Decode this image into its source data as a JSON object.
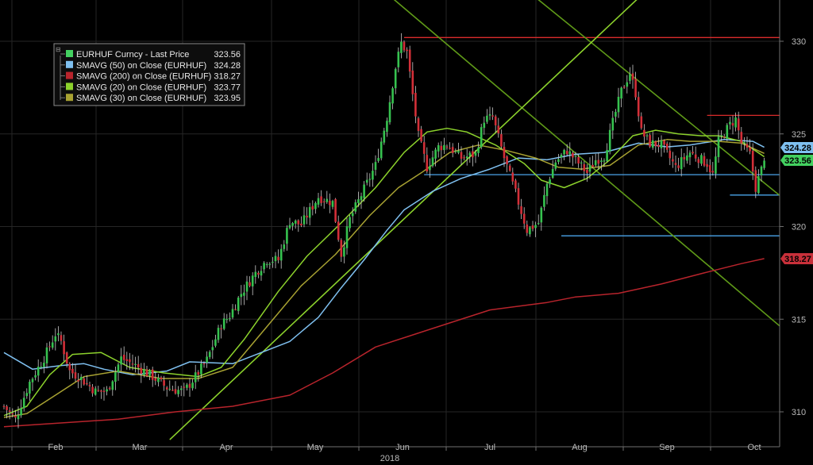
{
  "chart_data": {
    "type": "candlestick",
    "instrument": "EURHUF Curncy",
    "ylim": [
      308.5,
      332.3
    ],
    "yticks": [
      "310",
      "315",
      "320",
      "325",
      "330"
    ],
    "xticks": [
      "Feb",
      "Mar",
      "Apr",
      "May",
      "Jun",
      "Jul",
      "Aug",
      "Sep",
      "Oct"
    ],
    "year_label": "2018",
    "grid": true,
    "legend_position": "top-left",
    "legend": [
      {
        "name": "EURHUF Curncy - Last Price",
        "value": "323.56",
        "color": "#43d160"
      },
      {
        "name": "SMAVG (50)  on Close (EURHUF)",
        "value": "324.28",
        "color": "#7fc0f0"
      },
      {
        "name": "SMAVG (200)  on Close (EURHUF)",
        "value": "318.27",
        "color": "#b8242c"
      },
      {
        "name": "SMAVG (20)  on Close (EURHUF)",
        "value": "323.77",
        "color": "#8cd22c"
      },
      {
        "name": "SMAVG (30)  on Close (EURHUF)",
        "value": "323.95",
        "color": "#a8a232"
      }
    ],
    "value_tags": [
      {
        "value": "324.28",
        "color": "#7fc0f0"
      },
      {
        "value": "323.56",
        "color": "#43d160"
      },
      {
        "value": "318.27",
        "color": "#c8303a"
      }
    ],
    "colors": {
      "up": "#36c24f",
      "down": "#d32f38",
      "sma50": "#7fc0f0",
      "sma200": "#b8242c",
      "sma20": "#8cd22c",
      "sma30": "#a8a232",
      "trend": "#5f9a18",
      "trend_light": "#8cd22c",
      "resistance": "#d92b2b",
      "support": "#4aa3e8",
      "grid": "#262626",
      "axis": "#b9b9b9"
    },
    "close_path": [
      [
        0,
        310.3
      ],
      [
        4,
        309.6
      ],
      [
        9,
        311.6
      ],
      [
        14,
        312.9
      ],
      [
        18,
        314.2
      ],
      [
        20,
        313.8
      ],
      [
        23,
        312.2
      ],
      [
        27,
        311.8
      ],
      [
        32,
        311.1
      ],
      [
        36,
        311.1
      ],
      [
        41,
        312.9
      ],
      [
        46,
        312.5
      ],
      [
        52,
        311.9
      ],
      [
        57,
        311.3
      ],
      [
        63,
        311.1
      ],
      [
        67,
        311.9
      ],
      [
        71,
        312.8
      ],
      [
        76,
        314.7
      ],
      [
        79,
        315.2
      ],
      [
        83,
        316.4
      ],
      [
        88,
        317.5
      ],
      [
        92,
        318.2
      ],
      [
        96,
        318.2
      ],
      [
        100,
        320.3
      ],
      [
        104,
        320.1
      ],
      [
        110,
        321.6
      ],
      [
        115,
        321.3
      ],
      [
        118,
        318.5
      ],
      [
        121,
        320.4
      ],
      [
        125,
        321.7
      ],
      [
        130,
        323.3
      ],
      [
        134,
        325.9
      ],
      [
        137,
        328.6
      ],
      [
        139,
        329.9
      ],
      [
        141,
        329.4
      ],
      [
        143,
        327.1
      ],
      [
        145,
        324.9
      ],
      [
        148,
        323.2
      ],
      [
        152,
        324.3
      ],
      [
        155,
        324.4
      ],
      [
        160,
        323.7
      ],
      [
        165,
        323.9
      ],
      [
        168,
        325.8
      ],
      [
        171,
        325.9
      ],
      [
        175,
        323.7
      ],
      [
        179,
        321.8
      ],
      [
        183,
        319.8
      ],
      [
        187,
        320.2
      ],
      [
        190,
        322.3
      ],
      [
        193,
        323.5
      ],
      [
        197,
        324.1
      ],
      [
        200,
        323.6
      ],
      [
        204,
        322.9
      ],
      [
        207,
        323.6
      ],
      [
        210,
        323.8
      ],
      [
        213,
        325.6
      ],
      [
        216,
        327.3
      ],
      [
        219,
        328.3
      ],
      [
        221,
        327.2
      ],
      [
        223,
        325.1
      ],
      [
        226,
        324.5
      ],
      [
        230,
        324.4
      ],
      [
        235,
        323.2
      ],
      [
        240,
        324.0
      ],
      [
        246,
        323.4
      ],
      [
        248,
        322.8
      ],
      [
        250,
        324.6
      ],
      [
        254,
        325.5
      ],
      [
        256,
        325.8
      ],
      [
        258,
        324.5
      ],
      [
        261,
        323.9
      ],
      [
        263,
        322.1
      ],
      [
        266,
        323.56
      ]
    ],
    "series": [
      {
        "name": "SMAVG (50)  on Close (EURHUF)",
        "last": 324.28,
        "values": [
          [
            0,
            313.2
          ],
          [
            10,
            312.3
          ],
          [
            20,
            312.5
          ],
          [
            28,
            312.6
          ],
          [
            35,
            312.3
          ],
          [
            45,
            312.0
          ],
          [
            57,
            312.2
          ],
          [
            65,
            312.7
          ],
          [
            80,
            312.6
          ],
          [
            100,
            313.8
          ],
          [
            110,
            315.1
          ],
          [
            118,
            316.7
          ],
          [
            126,
            318.2
          ],
          [
            134,
            319.8
          ],
          [
            140,
            320.9
          ],
          [
            150,
            321.9
          ],
          [
            160,
            322.6
          ],
          [
            170,
            323.1
          ],
          [
            180,
            323.7
          ],
          [
            190,
            323.6
          ],
          [
            200,
            323.9
          ],
          [
            210,
            324.0
          ],
          [
            222,
            324.5
          ],
          [
            232,
            324.3
          ],
          [
            240,
            324.4
          ],
          [
            252,
            324.7
          ],
          [
            262,
            324.6
          ],
          [
            266,
            324.28
          ]
        ]
      },
      {
        "name": "SMAVG (200)  on Close (EURHUF)",
        "last": 318.27,
        "values": [
          [
            0,
            309.2
          ],
          [
            20,
            309.4
          ],
          [
            40,
            309.6
          ],
          [
            60,
            310.0
          ],
          [
            80,
            310.3
          ],
          [
            100,
            310.9
          ],
          [
            115,
            312.1
          ],
          [
            130,
            313.5
          ],
          [
            150,
            314.5
          ],
          [
            170,
            315.5
          ],
          [
            190,
            315.9
          ],
          [
            200,
            316.2
          ],
          [
            215,
            316.4
          ],
          [
            230,
            316.9
          ],
          [
            245,
            317.5
          ],
          [
            258,
            318.0
          ],
          [
            266,
            318.27
          ]
        ]
      },
      {
        "name": "SMAVG (20)  on Close (EURHUF)",
        "last": 323.77,
        "values": [
          [
            0,
            309.8
          ],
          [
            8,
            310.3
          ],
          [
            16,
            312.0
          ],
          [
            24,
            313.1
          ],
          [
            34,
            313.2
          ],
          [
            44,
            312.4
          ],
          [
            56,
            312.1
          ],
          [
            68,
            311.9
          ],
          [
            76,
            312.4
          ],
          [
            84,
            313.9
          ],
          [
            96,
            316.5
          ],
          [
            106,
            318.4
          ],
          [
            118,
            320.2
          ],
          [
            130,
            322.1
          ],
          [
            140,
            324.0
          ],
          [
            148,
            325.1
          ],
          [
            155,
            325.3
          ],
          [
            162,
            325.1
          ],
          [
            172,
            324.4
          ],
          [
            182,
            323.4
          ],
          [
            188,
            322.5
          ],
          [
            196,
            322.1
          ],
          [
            204,
            322.6
          ],
          [
            212,
            323.6
          ],
          [
            220,
            324.9
          ],
          [
            228,
            325.2
          ],
          [
            236,
            325.0
          ],
          [
            244,
            324.9
          ],
          [
            250,
            324.9
          ],
          [
            258,
            324.6
          ],
          [
            266,
            323.77
          ]
        ]
      },
      {
        "name": "SMAVG (30)  on Close (EURHUF)",
        "last": 323.95,
        "values": [
          [
            0,
            309.7
          ],
          [
            8,
            309.9
          ],
          [
            18,
            310.9
          ],
          [
            28,
            311.9
          ],
          [
            40,
            312.2
          ],
          [
            55,
            311.8
          ],
          [
            68,
            311.8
          ],
          [
            80,
            312.4
          ],
          [
            92,
            314.6
          ],
          [
            104,
            316.8
          ],
          [
            116,
            318.5
          ],
          [
            128,
            320.6
          ],
          [
            138,
            322.1
          ],
          [
            146,
            322.9
          ],
          [
            156,
            324.0
          ],
          [
            166,
            324.4
          ],
          [
            176,
            324.1
          ],
          [
            186,
            323.7
          ],
          [
            194,
            323.2
          ],
          [
            202,
            323.1
          ],
          [
            212,
            323.3
          ],
          [
            222,
            324.4
          ],
          [
            232,
            324.7
          ],
          [
            240,
            324.6
          ],
          [
            250,
            324.6
          ],
          [
            258,
            324.5
          ],
          [
            266,
            323.95
          ]
        ]
      }
    ],
    "annotation_lines": [
      {
        "kind": "resistance",
        "from": [
          140,
          330.2
        ],
        "to": [
          300,
          330.2
        ]
      },
      {
        "kind": "resistance",
        "from": [
          246,
          326.0
        ],
        "to": [
          300,
          326.0
        ]
      },
      {
        "kind": "support",
        "from": [
          147,
          322.8
        ],
        "to": [
          300,
          322.8
        ]
      },
      {
        "kind": "support",
        "from": [
          195,
          319.5
        ],
        "to": [
          300,
          319.5
        ]
      },
      {
        "kind": "support",
        "from": [
          254,
          321.7
        ],
        "to": [
          300,
          321.7
        ]
      },
      {
        "kind": "trend",
        "from": [
          58,
          342.5
        ],
        "to": [
          300,
          310.9
        ]
      },
      {
        "kind": "trend",
        "from": [
          105,
          342.5
        ],
        "to": [
          300,
          318.1
        ]
      },
      {
        "kind": "trend_light",
        "from": [
          58,
          308.5
        ],
        "to": [
          230,
          333.5
        ]
      }
    ]
  }
}
